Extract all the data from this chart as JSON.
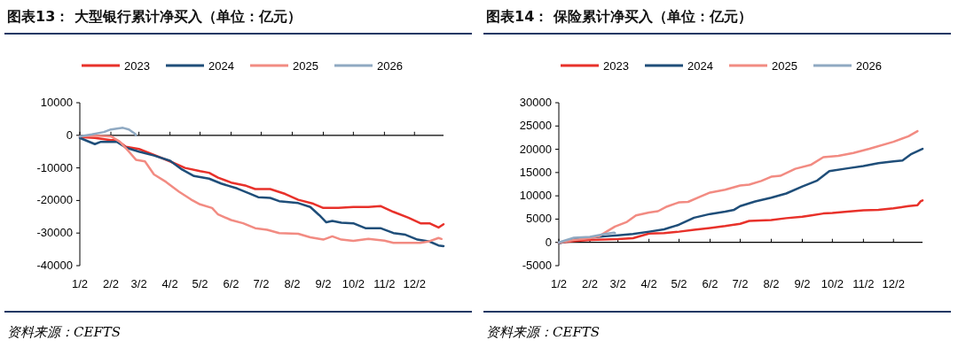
{
  "chart_data": [
    {
      "type": "line",
      "title": "图表13： 大型银行累计净买入（单位：亿元）",
      "annotations": [
        "资料来源：CEFTS"
      ],
      "legend": "top",
      "xlim": [
        "--01-02",
        "--12-31"
      ],
      "xticks": [
        {
          "value": "--01-02",
          "label": "1/2"
        },
        {
          "value": "--02-02",
          "label": "2/2"
        },
        {
          "value": "--03-02",
          "label": "3/2"
        },
        {
          "value": "--04-02",
          "label": "4/2"
        },
        {
          "value": "--05-02",
          "label": "5/2"
        },
        {
          "value": "--06-02",
          "label": "6/2"
        },
        {
          "value": "--07-02",
          "label": "7/2"
        },
        {
          "value": "--08-02",
          "label": "8/2"
        },
        {
          "value": "--09-02",
          "label": "9/2"
        },
        {
          "value": "--10-02",
          "label": "10/2"
        },
        {
          "value": "--11-02",
          "label": "11/2"
        },
        {
          "value": "--12-02",
          "label": "12/2"
        }
      ],
      "ylim": [
        -40000,
        10000
      ],
      "yticks": [
        -40000,
        -30000,
        -20000,
        -10000,
        0,
        10000
      ],
      "series": [
        {
          "name": "2023",
          "color": "#e8312a",
          "x": [
            "--01-02",
            "--01-17",
            "--02-02",
            "--02-08",
            "--02-17",
            "--03-02",
            "--03-17",
            "--04-02",
            "--04-17",
            "--05-02",
            "--05-11",
            "--05-20",
            "--06-02",
            "--06-17",
            "--06-26",
            "--07-11",
            "--07-26",
            "--08-08",
            "--08-23",
            "--09-02",
            "--09-17",
            "--10-02",
            "--10-17",
            "--10-29",
            "--11-11",
            "--11-26",
            "--12-08",
            "--12-17",
            "--12-26",
            "--12-31"
          ],
          "values": [
            -500,
            -800,
            -1500,
            -1500,
            -3500,
            -4200,
            -6000,
            -8000,
            -10000,
            -11000,
            -11500,
            -13000,
            -14500,
            -15500,
            -16500,
            -16500,
            -18000,
            -19800,
            -21000,
            -22300,
            -22300,
            -22000,
            -22000,
            -21700,
            -23500,
            -25300,
            -27000,
            -27000,
            -28300,
            -27300
          ]
        },
        {
          "name": "2024",
          "color": "#1f4e79",
          "x": [
            "--01-02",
            "--01-17",
            "--01-23",
            "--02-08",
            "--02-17",
            "--03-02",
            "--03-17",
            "--04-02",
            "--04-14",
            "--04-26",
            "--05-11",
            "--05-23",
            "--06-08",
            "--06-20",
            "--06-29",
            "--07-11",
            "--07-20",
            "--08-08",
            "--08-20",
            "--08-29",
            "--09-05",
            "--09-11",
            "--09-20",
            "--10-02",
            "--10-14",
            "--10-29",
            "--11-11",
            "--11-23",
            "--12-05",
            "--12-17",
            "--12-26",
            "--12-31"
          ],
          "values": [
            -800,
            -2700,
            -2000,
            -2000,
            -3800,
            -5000,
            -6200,
            -7800,
            -10500,
            -12500,
            -13300,
            -14800,
            -16300,
            -17800,
            -19000,
            -19200,
            -20200,
            -20800,
            -22000,
            -24500,
            -26700,
            -26300,
            -26800,
            -27000,
            -28500,
            -28500,
            -30000,
            -30500,
            -32000,
            -32600,
            -33800,
            -34000
          ]
        },
        {
          "name": "2025",
          "color": "#f28b82",
          "x": [
            "--01-02",
            "--01-17",
            "--02-02",
            "--02-11",
            "--02-20",
            "--02-27",
            "--03-08",
            "--03-17",
            "--03-29",
            "--04-11",
            "--04-23",
            "--05-02",
            "--05-14",
            "--05-20",
            "--06-02",
            "--06-14",
            "--06-26",
            "--07-08",
            "--07-20",
            "--08-08",
            "--08-20",
            "--09-02",
            "--09-11",
            "--09-20",
            "--10-02",
            "--10-17",
            "--11-02",
            "--11-11",
            "--11-26",
            "--12-08",
            "--12-17",
            "--12-26",
            "--12-29"
          ],
          "values": [
            -300,
            -100,
            -300,
            -2000,
            -5000,
            -7500,
            -8000,
            -12000,
            -14300,
            -17300,
            -19700,
            -21200,
            -22300,
            -24300,
            -26000,
            -27000,
            -28500,
            -29000,
            -30000,
            -30200,
            -31300,
            -32000,
            -31000,
            -32000,
            -32400,
            -31800,
            -32300,
            -33000,
            -33000,
            -33000,
            -32500,
            -31500,
            -31800
          ]
        },
        {
          "name": "2026",
          "color": "#8fa9c2",
          "x": [
            "--01-02",
            "--01-14",
            "--01-26",
            "--02-02",
            "--02-14",
            "--02-20",
            "--02-26",
            "--02-27"
          ],
          "values": [
            -300,
            300,
            1000,
            1800,
            2300,
            1800,
            500,
            0
          ]
        }
      ]
    },
    {
      "type": "line",
      "title": "图表14： 保险累计净买入（单位：亿元）",
      "annotations": [
        "资料来源：CEFTS"
      ],
      "legend": "top",
      "xlim": [
        "--01-02",
        "--12-31"
      ],
      "xticks": [
        {
          "value": "--01-02",
          "label": "1/2"
        },
        {
          "value": "--02-02",
          "label": "2/2"
        },
        {
          "value": "--03-02",
          "label": "3/2"
        },
        {
          "value": "--04-02",
          "label": "4/2"
        },
        {
          "value": "--05-02",
          "label": "5/2"
        },
        {
          "value": "--06-02",
          "label": "6/2"
        },
        {
          "value": "--07-02",
          "label": "7/2"
        },
        {
          "value": "--08-02",
          "label": "8/2"
        },
        {
          "value": "--09-02",
          "label": "9/2"
        },
        {
          "value": "--10-02",
          "label": "10/2"
        },
        {
          "value": "--11-02",
          "label": "11/2"
        },
        {
          "value": "--12-02",
          "label": "12/2"
        }
      ],
      "ylim": [
        -5000,
        30000
      ],
      "yticks": [
        -5000,
        0,
        5000,
        10000,
        15000,
        20000,
        25000,
        30000
      ],
      "series": [
        {
          "name": "2023",
          "color": "#e8312a",
          "x": [
            "--01-02",
            "--01-17",
            "--02-02",
            "--02-17",
            "--03-02",
            "--03-17",
            "--04-02",
            "--04-17",
            "--05-02",
            "--05-17",
            "--06-02",
            "--06-17",
            "--07-02",
            "--07-11",
            "--08-02",
            "--08-17",
            "--09-02",
            "--09-11",
            "--09-23",
            "--10-02",
            "--10-17",
            "--11-02",
            "--11-17",
            "--12-02",
            "--12-17",
            "--12-26",
            "--12-29",
            "--12-31"
          ],
          "values": [
            -100,
            300,
            500,
            600,
            700,
            900,
            1900,
            2000,
            2300,
            2700,
            3100,
            3500,
            4000,
            4600,
            4800,
            5200,
            5500,
            5800,
            6200,
            6300,
            6600,
            6900,
            7000,
            7300,
            7800,
            8000,
            8800,
            9000
          ]
        },
        {
          "name": "2024",
          "color": "#1f4e79",
          "x": [
            "--01-02",
            "--01-17",
            "--02-02",
            "--02-17",
            "--03-02",
            "--03-17",
            "--04-02",
            "--04-17",
            "--05-02",
            "--05-17",
            "--06-02",
            "--06-17",
            "--06-26",
            "--07-02",
            "--07-17",
            "--08-02",
            "--08-17",
            "--09-02",
            "--09-17",
            "--09-29",
            "--10-17",
            "--11-02",
            "--11-17",
            "--12-02",
            "--12-11",
            "--12-20",
            "--12-31"
          ],
          "values": [
            -200,
            600,
            1000,
            1300,
            1500,
            1800,
            2300,
            2800,
            3800,
            5300,
            6100,
            6600,
            7000,
            7800,
            8800,
            9600,
            10500,
            12000,
            13300,
            15300,
            15900,
            16400,
            17000,
            17400,
            17600,
            19000,
            20100
          ]
        },
        {
          "name": "2025",
          "color": "#f28b82",
          "x": [
            "--01-02",
            "--01-17",
            "--02-02",
            "--02-11",
            "--02-20",
            "--02-27",
            "--03-11",
            "--03-20",
            "--04-02",
            "--04-11",
            "--04-20",
            "--05-02",
            "--05-11",
            "--05-23",
            "--06-02",
            "--06-17",
            "--07-02",
            "--07-11",
            "--07-23",
            "--08-02",
            "--08-11",
            "--08-26",
            "--09-11",
            "--09-23",
            "--10-08",
            "--10-23",
            "--11-08",
            "--12-02",
            "--12-17",
            "--12-26"
          ],
          "values": [
            -100,
            500,
            900,
            1300,
            2500,
            3400,
            4400,
            5800,
            6400,
            6700,
            7700,
            8600,
            8700,
            9800,
            10700,
            11300,
            12200,
            12400,
            13200,
            14100,
            14300,
            15800,
            16700,
            18300,
            18600,
            19200,
            20100,
            21600,
            22800,
            23900
          ]
        },
        {
          "name": "2026",
          "color": "#8fa9c2",
          "x": [
            "--01-02",
            "--01-17",
            "--02-02",
            "--02-17",
            "--02-26",
            "--02-27"
          ],
          "values": [
            0,
            1000,
            1200,
            1800,
            2100,
            2000
          ]
        }
      ]
    }
  ]
}
